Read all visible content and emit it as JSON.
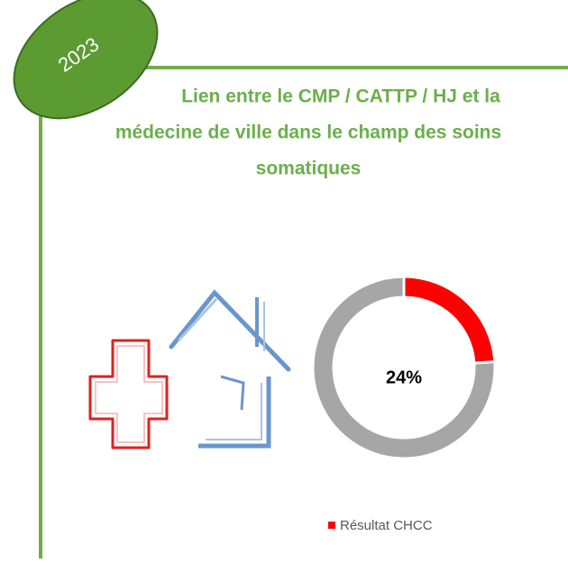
{
  "badge": "2023",
  "chart_data": {
    "type": "pie",
    "donut": true,
    "title": [
      "Lien entre le CMP / CATTP / HJ et la",
      "médecine de ville dans le champ des soins",
      "somatiques"
    ],
    "categories": [
      "Résultat CHCC",
      null
    ],
    "values": [
      24,
      76
    ],
    "value_labels": [
      "24%",
      null
    ],
    "colors": [
      "#ff0000",
      "#a6a6a6"
    ]
  }
}
